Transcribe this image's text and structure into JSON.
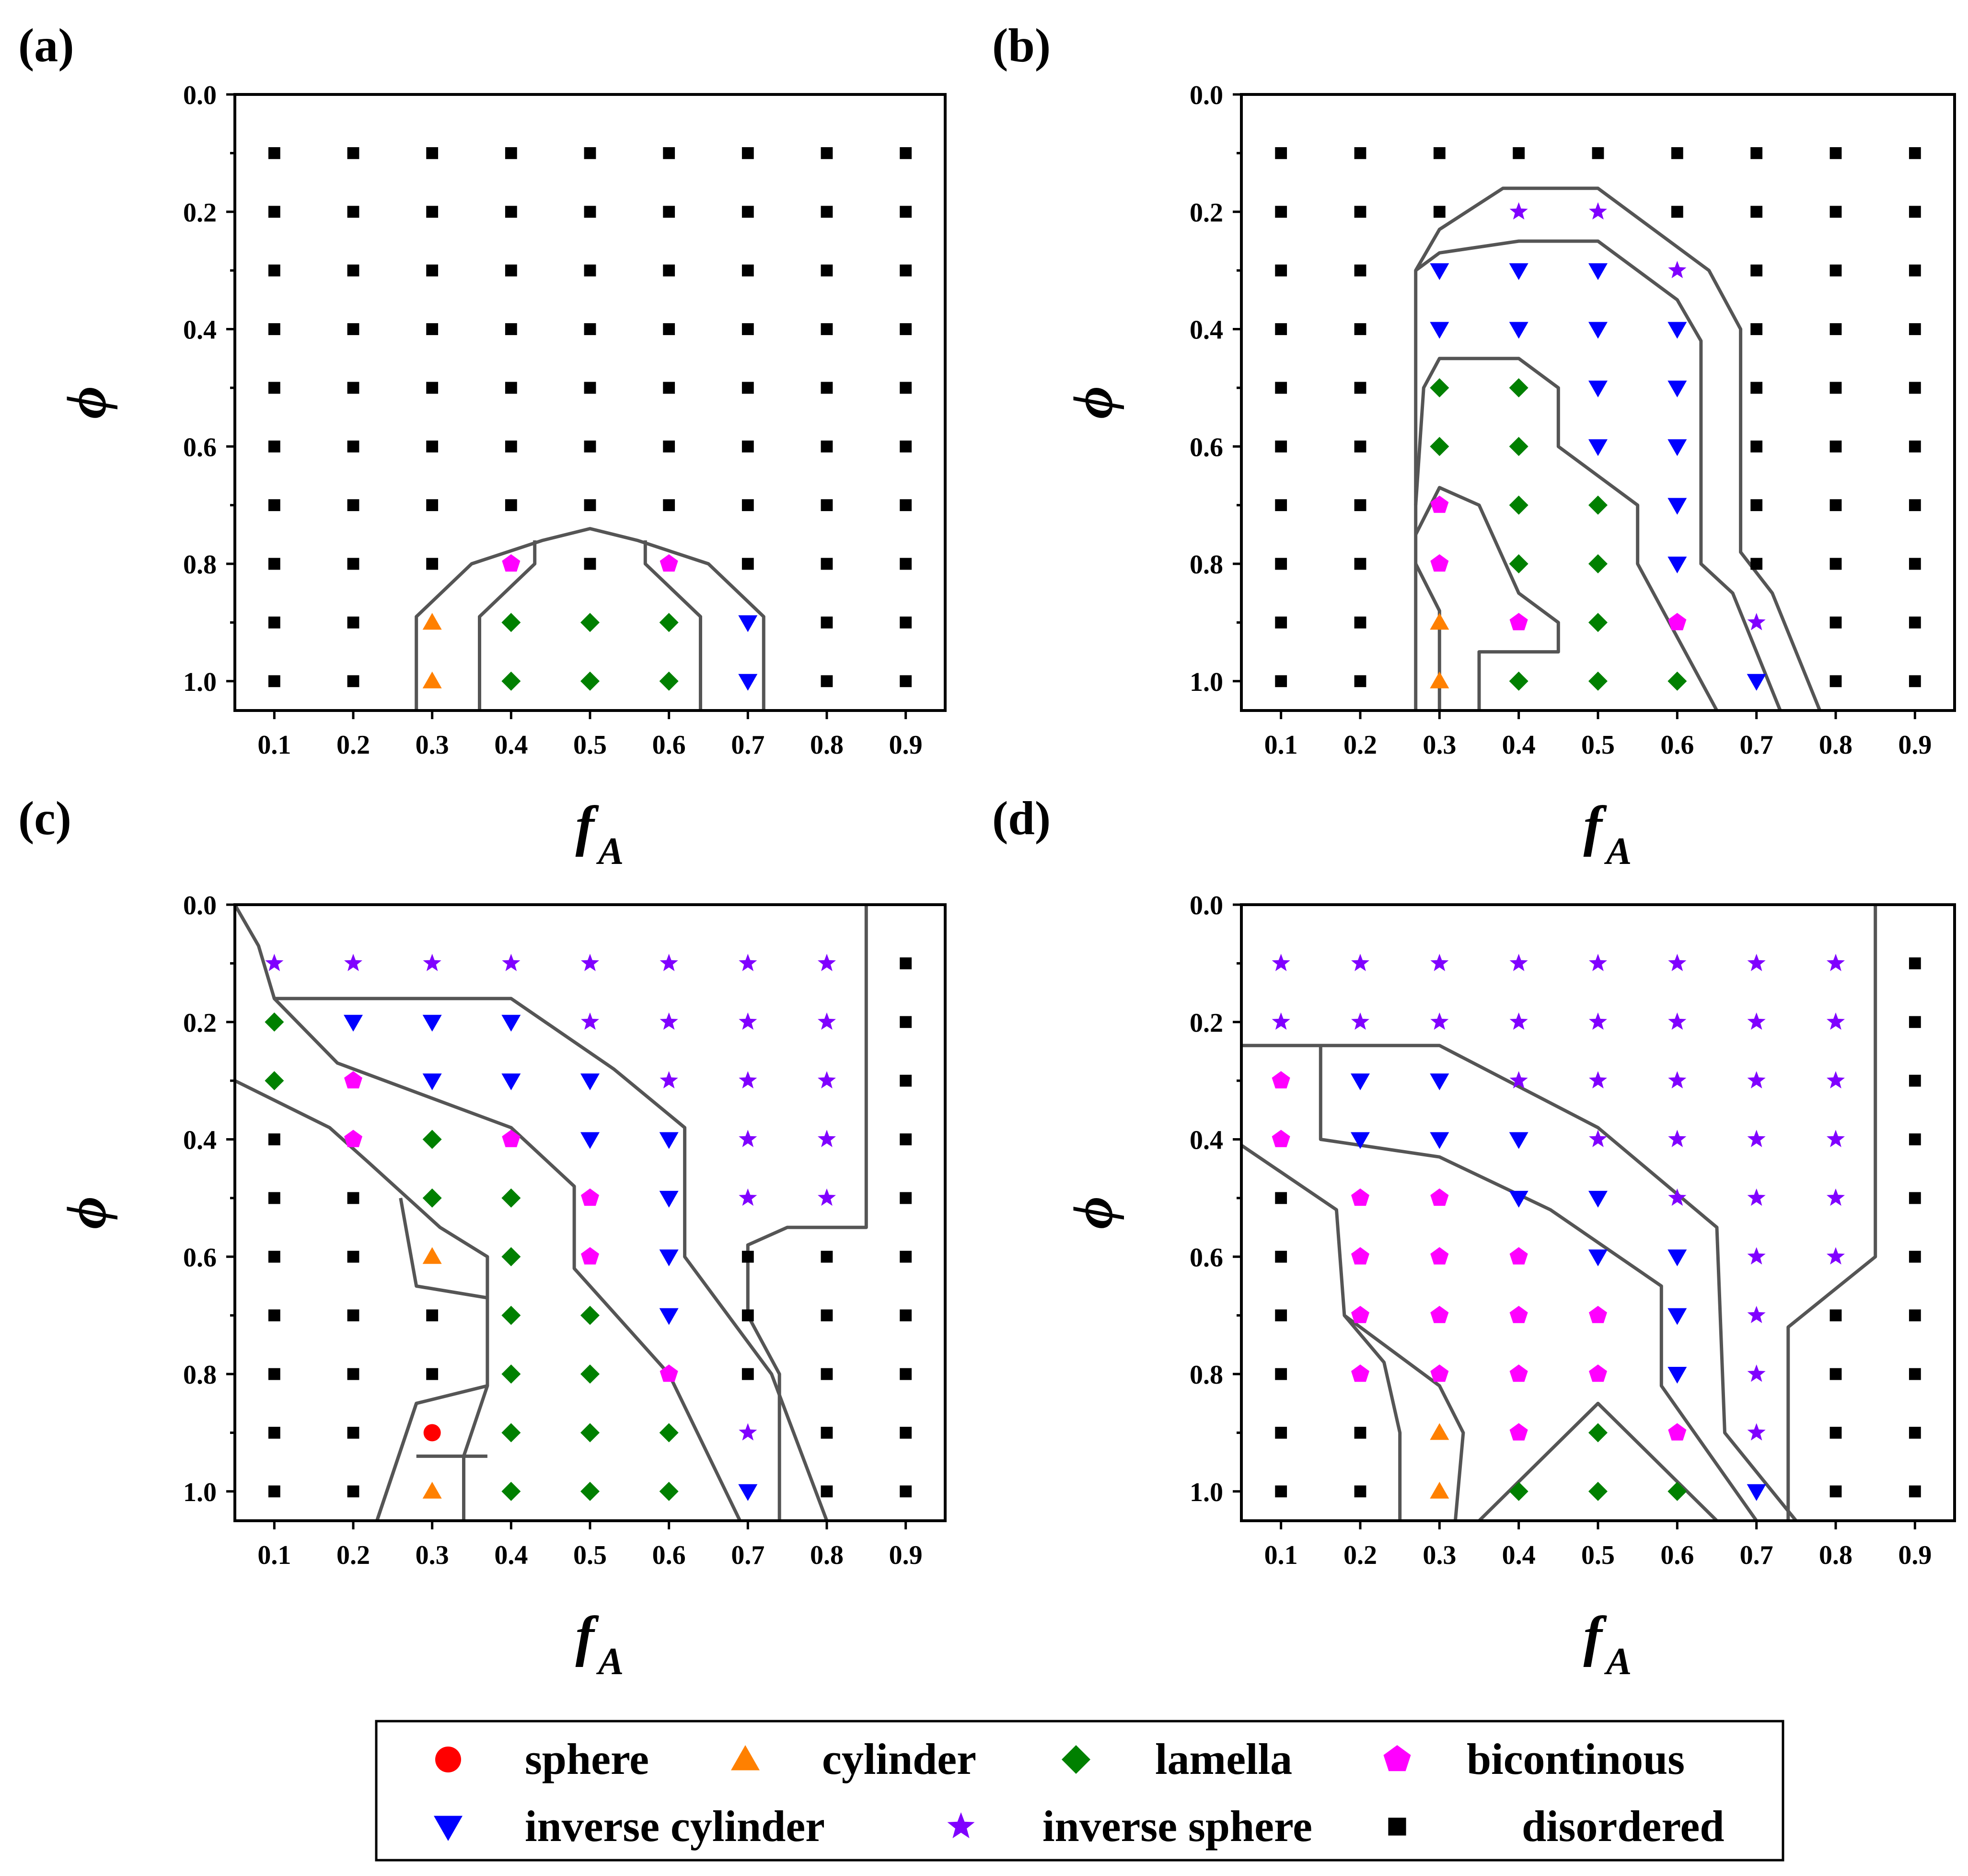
{
  "colors": {
    "sphere": "#ff0000",
    "cylinder": "#ff8000",
    "lamella": "#008000",
    "bicontinous": "#ff00ff",
    "inverse_cylinder": "#0000ff",
    "inverse_sphere": "#8000ff",
    "disordered": "#000000",
    "boundary": "#555555"
  },
  "legend": {
    "items": [
      {
        "key": "sphere",
        "label": "sphere",
        "icon": "circle-marker-icon"
      },
      {
        "key": "cylinder",
        "label": "cylinder",
        "icon": "triangle-up-marker-icon"
      },
      {
        "key": "lamella",
        "label": "lamella",
        "icon": "diamond-marker-icon"
      },
      {
        "key": "bicontinous",
        "label": "bicontinous",
        "icon": "pentagon-marker-icon"
      },
      {
        "key": "inverse_cylinder",
        "label": "inverse cylinder",
        "icon": "triangle-down-marker-icon"
      },
      {
        "key": "inverse_sphere",
        "label": "inverse sphere",
        "icon": "star-marker-icon"
      },
      {
        "key": "disordered",
        "label": "disordered",
        "icon": "square-marker-icon"
      }
    ]
  },
  "chart_data": [
    {
      "panel_label": "(a)",
      "type": "scatter",
      "xlabel": "f",
      "xlabel_sub": "A",
      "ylabel": "ϕ",
      "xlim": [
        0.05,
        0.95
      ],
      "ylim": [
        0.0,
        1.05
      ],
      "y_inverted": true,
      "xticks": [
        "0.1",
        "0.2",
        "0.3",
        "0.4",
        "0.5",
        "0.6",
        "0.7",
        "0.8",
        "0.9"
      ],
      "yticks": [
        "0.0",
        "0.2",
        "0.4",
        "0.6",
        "0.8",
        "1.0"
      ],
      "grid": false,
      "default_phase": "disordered",
      "phases": [
        "--------",
        "--------",
        "--------",
        "--------",
        "--------",
        "--------",
        "--------",
        "---B-B--",
        "--CLLLI-",
        "--CLLLI-"
      ],
      "boundaries": [
        [
          [
            0.28,
            1.05
          ],
          [
            0.28,
            0.89
          ],
          [
            0.35,
            0.8
          ],
          [
            0.44,
            0.76
          ],
          [
            0.5,
            0.74
          ],
          [
            0.56,
            0.76
          ],
          [
            0.65,
            0.8
          ],
          [
            0.72,
            0.89
          ],
          [
            0.72,
            1.05
          ]
        ],
        [
          [
            0.36,
            1.05
          ],
          [
            0.36,
            0.89
          ],
          [
            0.43,
            0.8
          ],
          [
            0.43,
            0.76
          ]
        ],
        [
          [
            0.64,
            1.05
          ],
          [
            0.64,
            0.89
          ],
          [
            0.57,
            0.8
          ],
          [
            0.57,
            0.76
          ]
        ]
      ]
    },
    {
      "panel_label": "(b)",
      "type": "scatter",
      "xlabel": "f",
      "xlabel_sub": "A",
      "ylabel": "ϕ",
      "xlim": [
        0.05,
        0.95
      ],
      "ylim": [
        0.0,
        1.05
      ],
      "y_inverted": true,
      "xticks": [
        "0.1",
        "0.2",
        "0.3",
        "0.4",
        "0.5",
        "0.6",
        "0.7",
        "0.8",
        "0.9"
      ],
      "yticks": [
        "0.0",
        "0.2",
        "0.4",
        "0.6",
        "0.8",
        "1.0"
      ],
      "grid": false,
      "default_phase": "disordered",
      "phases": [
        "--------",
        "---SS---",
        "--IIIS--",
        "--IIII--",
        "--LLII--",
        "--LLII--",
        "--BLLI--",
        "--BLLI--",
        "--CBLBS-",
        "--CLLLI-"
      ],
      "boundaries": [
        [
          [
            0.27,
            1.05
          ],
          [
            0.27,
            0.3
          ],
          [
            0.3,
            0.23
          ],
          [
            0.38,
            0.16
          ],
          [
            0.5,
            0.16
          ],
          [
            0.64,
            0.3
          ],
          [
            0.68,
            0.4
          ],
          [
            0.68,
            0.78
          ],
          [
            0.72,
            0.85
          ],
          [
            0.78,
            1.05
          ]
        ],
        [
          [
            0.27,
            0.3
          ],
          [
            0.3,
            0.27
          ],
          [
            0.4,
            0.25
          ],
          [
            0.5,
            0.25
          ],
          [
            0.6,
            0.35
          ],
          [
            0.63,
            0.42
          ],
          [
            0.63,
            0.8
          ],
          [
            0.67,
            0.85
          ],
          [
            0.73,
            1.05
          ]
        ],
        [
          [
            0.27,
            0.7
          ],
          [
            0.28,
            0.5
          ],
          [
            0.3,
            0.45
          ],
          [
            0.4,
            0.45
          ],
          [
            0.45,
            0.5
          ],
          [
            0.45,
            0.6
          ],
          [
            0.55,
            0.7
          ],
          [
            0.55,
            0.8
          ],
          [
            0.65,
            1.05
          ]
        ],
        [
          [
            0.27,
            0.75
          ],
          [
            0.3,
            0.67
          ],
          [
            0.35,
            0.7
          ],
          [
            0.4,
            0.85
          ],
          [
            0.45,
            0.9
          ],
          [
            0.45,
            0.95
          ],
          [
            0.35,
            0.95
          ],
          [
            0.35,
            1.05
          ]
        ],
        [
          [
            0.27,
            0.8
          ],
          [
            0.3,
            0.88
          ],
          [
            0.3,
            1.05
          ]
        ]
      ]
    },
    {
      "panel_label": "(c)",
      "type": "scatter",
      "xlabel": "f",
      "xlabel_sub": "A",
      "ylabel": "ϕ",
      "xlim": [
        0.05,
        0.95
      ],
      "ylim": [
        0.0,
        1.05
      ],
      "y_inverted": true,
      "xticks": [
        "0.1",
        "0.2",
        "0.3",
        "0.4",
        "0.5",
        "0.6",
        "0.7",
        "0.8",
        "0.9"
      ],
      "yticks": [
        "0.0",
        "0.2",
        "0.4",
        "0.6",
        "0.8",
        "1.0"
      ],
      "grid": false,
      "default_phase": "disordered",
      "phases": [
        "SSSSSSSS",
        "LIIISSSS",
        "LBIIISSS",
        "-BLBIISS",
        "--LLBISS",
        "--CLBI--",
        "---LLI--",
        "---LLB--",
        "--OLLLS-",
        "--CLLLI-"
      ],
      "boundaries": [
        [
          [
            0.05,
            0.0
          ],
          [
            0.08,
            0.07
          ],
          [
            0.1,
            0.16
          ],
          [
            0.25,
            0.16
          ],
          [
            0.4,
            0.16
          ],
          [
            0.53,
            0.28
          ],
          [
            0.62,
            0.38
          ],
          [
            0.62,
            0.6
          ],
          [
            0.73,
            0.8
          ],
          [
            0.8,
            1.05
          ]
        ],
        [
          [
            0.1,
            0.16
          ],
          [
            0.18,
            0.27
          ],
          [
            0.4,
            0.38
          ],
          [
            0.48,
            0.48
          ],
          [
            0.48,
            0.62
          ],
          [
            0.6,
            0.8
          ],
          [
            0.69,
            1.05
          ]
        ],
        [
          [
            0.05,
            0.3
          ],
          [
            0.17,
            0.38
          ],
          [
            0.22,
            0.44
          ],
          [
            0.31,
            0.55
          ],
          [
            0.37,
            0.6
          ],
          [
            0.37,
            0.82
          ],
          [
            0.34,
            0.94
          ],
          [
            0.34,
            1.05
          ]
        ],
        [
          [
            0.26,
            0.5
          ],
          [
            0.28,
            0.65
          ],
          [
            0.37,
            0.67
          ]
        ],
        [
          [
            0.23,
            1.05
          ],
          [
            0.28,
            0.85
          ],
          [
            0.37,
            0.82
          ]
        ],
        [
          [
            0.28,
            0.85
          ],
          [
            0.23,
            1.05
          ]
        ],
        [
          [
            0.28,
            0.94
          ],
          [
            0.37,
            0.94
          ]
        ],
        [
          [
            0.85,
            0.0
          ],
          [
            0.85,
            0.55
          ],
          [
            0.75,
            0.55
          ],
          [
            0.7,
            0.58
          ],
          [
            0.7,
            0.7
          ],
          [
            0.74,
            0.8
          ],
          [
            0.74,
            1.05
          ]
        ]
      ]
    },
    {
      "panel_label": "(d)",
      "type": "scatter",
      "xlabel": "f",
      "xlabel_sub": "A",
      "ylabel": "ϕ",
      "xlim": [
        0.05,
        0.95
      ],
      "ylim": [
        0.0,
        1.05
      ],
      "y_inverted": true,
      "xticks": [
        "0.1",
        "0.2",
        "0.3",
        "0.4",
        "0.5",
        "0.6",
        "0.7",
        "0.8",
        "0.9"
      ],
      "yticks": [
        "0.0",
        "0.2",
        "0.4",
        "0.6",
        "0.8",
        "1.0"
      ],
      "grid": false,
      "default_phase": "disordered",
      "phases": [
        "SSSSSSSS",
        "SSSSSSSS",
        "BIISSSSS",
        "BIIISSSS",
        "-BBIISSS",
        "-BBBIISS",
        "-BBBBIS-",
        "-BBBBIS-",
        "--CBLBS-",
        "--CLLLI-"
      ],
      "boundaries": [
        [
          [
            0.05,
            0.24
          ],
          [
            0.3,
            0.24
          ],
          [
            0.5,
            0.38
          ],
          [
            0.65,
            0.55
          ],
          [
            0.66,
            0.9
          ],
          [
            0.75,
            1.05
          ]
        ],
        [
          [
            0.15,
            0.24
          ],
          [
            0.15,
            0.4
          ],
          [
            0.3,
            0.43
          ],
          [
            0.44,
            0.52
          ],
          [
            0.58,
            0.65
          ],
          [
            0.58,
            0.82
          ],
          [
            0.7,
            1.05
          ]
        ],
        [
          [
            0.05,
            0.41
          ],
          [
            0.17,
            0.52
          ],
          [
            0.18,
            0.7
          ],
          [
            0.3,
            0.82
          ],
          [
            0.33,
            0.9
          ],
          [
            0.32,
            1.05
          ]
        ],
        [
          [
            0.18,
            0.7
          ],
          [
            0.23,
            0.78
          ],
          [
            0.25,
            0.9
          ],
          [
            0.25,
            1.05
          ]
        ],
        [
          [
            0.35,
            1.05
          ],
          [
            0.5,
            0.85
          ],
          [
            0.65,
            1.05
          ]
        ],
        [
          [
            0.85,
            0.0
          ],
          [
            0.85,
            0.6
          ],
          [
            0.74,
            0.72
          ],
          [
            0.74,
            1.05
          ]
        ]
      ]
    }
  ]
}
